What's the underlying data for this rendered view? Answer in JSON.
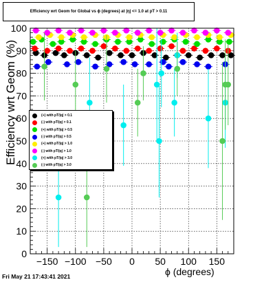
{
  "header": {
    "title": "Efficiency wrt Geom for Global vs ϕ (degrees) at |η| <= 1.0 at pT > 0.11",
    "timestamp": "Fri May 21 17:43:41 2021"
  },
  "chart_data": {
    "type": "scatter",
    "title": "Efficiency wrt Geom for Global vs ϕ (degrees) at |η| <= 1.0 at pT > 0.11",
    "xlabel": "ϕ (degrees)",
    "ylabel": "Efficiency wrt Geom (%)",
    "xlim": [
      -180,
      180
    ],
    "ylim": [
      0,
      100
    ],
    "xticks": [
      -150,
      -100,
      -50,
      0,
      50,
      100,
      150
    ],
    "yticks": [
      0,
      10,
      20,
      30,
      40,
      50,
      60,
      70,
      80,
      90,
      100
    ],
    "grid": true,
    "legend_position": "middle-left",
    "series": [
      {
        "name": "(+) with pT/|q| > 0.1",
        "color": "#000000",
        "x": [
          -170,
          -155,
          -135,
          -120,
          -100,
          -80,
          -60,
          -40,
          -20,
          0,
          20,
          40,
          60,
          80,
          100,
          120,
          140,
          160,
          175
        ],
        "y": [
          89,
          88,
          89,
          88,
          89,
          88,
          87,
          89,
          88,
          88,
          89,
          88,
          87,
          88,
          88,
          87,
          88,
          88,
          88
        ],
        "err": [
          1,
          1,
          1,
          1,
          1,
          1,
          1,
          1,
          1,
          1,
          1,
          1,
          1,
          1,
          1,
          1,
          1,
          1,
          1
        ]
      },
      {
        "name": "(-) with pT/|q| > 0.1",
        "color": "#ff0000",
        "x": [
          -172,
          -150,
          -130,
          -110,
          -90,
          -70,
          -50,
          -30,
          -10,
          10,
          30,
          50,
          70,
          90,
          110,
          130,
          150,
          170
        ],
        "y": [
          91,
          90,
          91,
          90,
          91,
          90,
          92,
          91,
          90,
          91,
          90,
          91,
          92,
          90,
          91,
          90,
          91,
          90
        ],
        "err": [
          1,
          1,
          1,
          1,
          1,
          1,
          1,
          1,
          1,
          1,
          1,
          1,
          1,
          1,
          1,
          1,
          1,
          1
        ]
      },
      {
        "name": "(+) with pT/|q| > 0.5",
        "color": "#00dd00",
        "x": [
          -175,
          -160,
          -140,
          -125,
          -105,
          -85,
          -65,
          -45,
          -25,
          -5,
          15,
          35,
          55,
          75,
          95,
          115,
          135,
          155,
          172
        ],
        "y": [
          94,
          95,
          93,
          94,
          95,
          94,
          93,
          95,
          94,
          94,
          95,
          93,
          94,
          95,
          94,
          93,
          95,
          94,
          94
        ],
        "err": [
          1,
          1,
          1,
          1,
          1,
          1,
          1,
          1,
          1,
          1,
          1,
          1,
          1,
          1,
          1,
          1,
          1,
          1,
          1
        ]
      },
      {
        "name": "(-) with pT/|q| > 0.5",
        "color": "#0000ee",
        "x": [
          -168,
          -148,
          -115,
          -95,
          -65,
          -40,
          -15,
          5,
          30,
          55,
          65,
          90,
          115,
          135,
          165
        ],
        "y": [
          83,
          85,
          84,
          85,
          83,
          84,
          85,
          84,
          84,
          85,
          83,
          85,
          84,
          83,
          84
        ],
        "err": [
          1,
          1,
          1,
          1,
          1,
          1,
          1,
          1,
          1,
          1,
          1,
          1,
          1,
          1,
          1
        ]
      },
      {
        "name": "(+) with pT/|q| > 1.0",
        "color": "#ffee00",
        "x": [
          -165,
          -145,
          -125,
          -105,
          -85,
          -65,
          -45,
          -25,
          -5,
          15,
          35,
          55,
          75,
          95,
          115,
          135,
          155,
          175
        ],
        "y": [
          96,
          97,
          96,
          97,
          96,
          97,
          96,
          97,
          96,
          97,
          96,
          97,
          96,
          97,
          96,
          97,
          96,
          97
        ],
        "err": [
          1,
          1,
          1,
          1,
          1,
          1,
          1,
          1,
          1,
          1,
          1,
          1,
          1,
          1,
          1,
          1,
          1,
          1
        ]
      },
      {
        "name": "(-) with pT/|q| > 1.0",
        "color": "#ff00ff",
        "x": [
          -170,
          -150,
          -130,
          -110,
          -90,
          -70,
          -50,
          -30,
          -10,
          10,
          30,
          50,
          70,
          90,
          110,
          130,
          150,
          170
        ],
        "y": [
          99,
          98,
          99,
          98,
          99,
          98,
          99,
          98,
          99,
          98,
          99,
          98,
          99,
          98,
          99,
          98,
          99,
          98
        ],
        "err": [
          1,
          1,
          1,
          1,
          1,
          1,
          1,
          1,
          1,
          1,
          1,
          1,
          1,
          1,
          1,
          1,
          1,
          1
        ]
      },
      {
        "name": "(+) with pT/|q| > 3.0",
        "color": "#00eeee",
        "x": [
          -130,
          -75,
          -15,
          44,
          48,
          52,
          75,
          80,
          135,
          165
        ],
        "y": [
          25,
          67,
          57,
          75,
          50,
          80,
          67,
          88,
          60,
          67
        ],
        "err": [
          22,
          20,
          18,
          25,
          25,
          15,
          15,
          10,
          22,
          20
        ]
      },
      {
        "name": "(-) with pT/|q| > 3.0",
        "color": "#55cc55",
        "x": [
          -155,
          -100,
          -80,
          -45,
          10,
          20,
          80,
          160,
          165,
          170
        ],
        "y": [
          83,
          75,
          25,
          82,
          67,
          80,
          82,
          50,
          75,
          75
        ],
        "err": [
          15,
          15,
          22,
          15,
          15,
          12,
          12,
          35,
          20,
          18
        ]
      }
    ]
  }
}
